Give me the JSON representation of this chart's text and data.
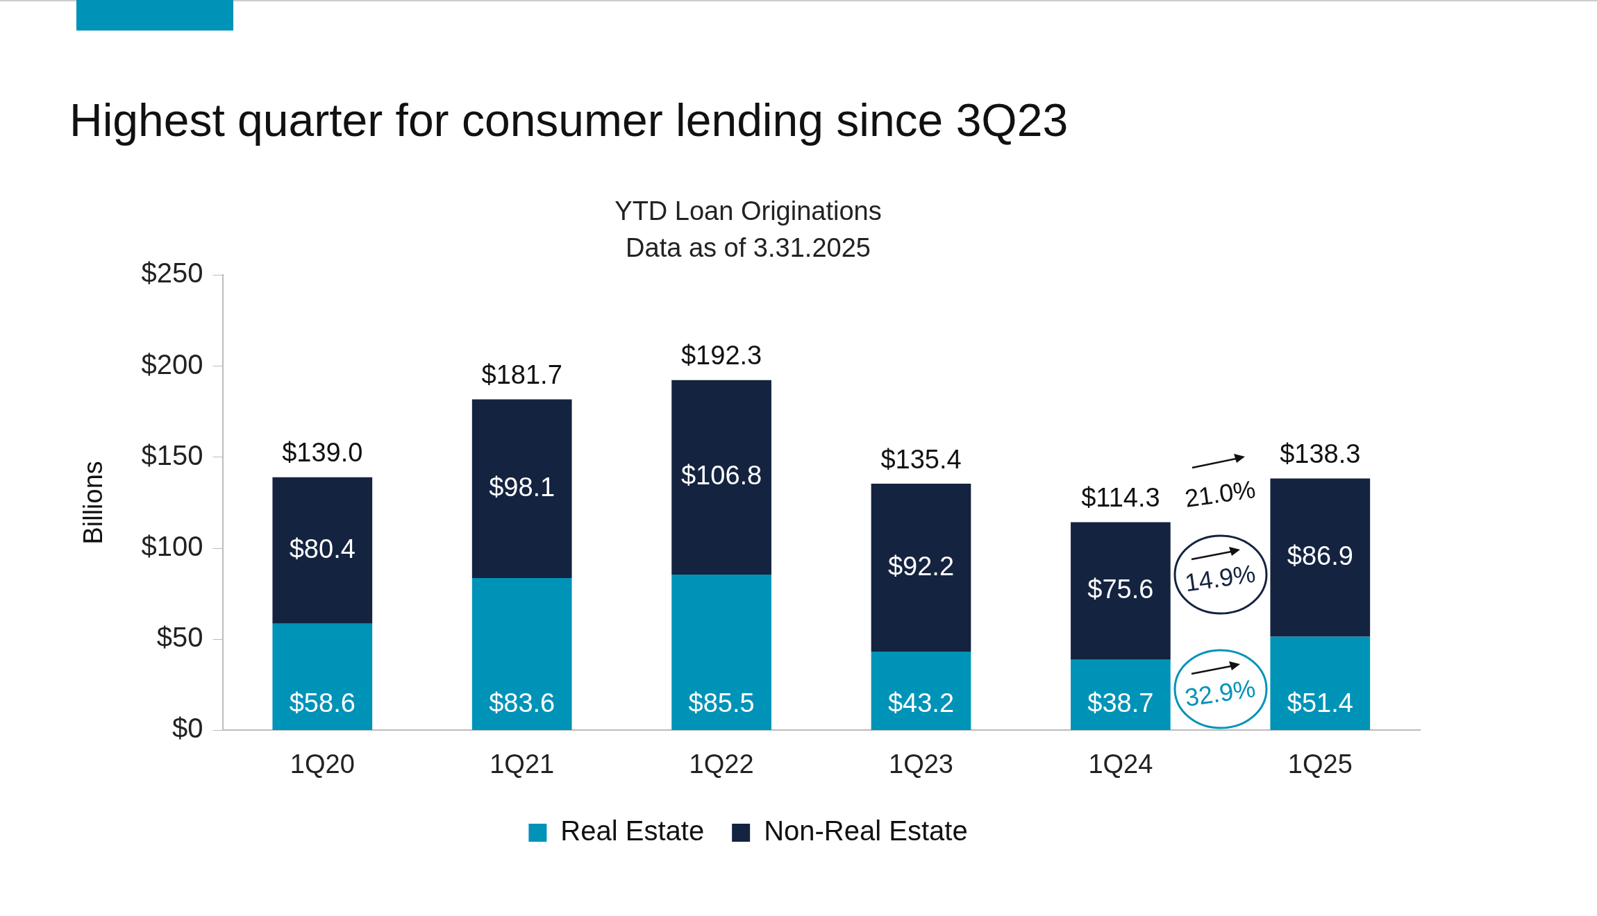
{
  "chart_data": {
    "type": "bar",
    "title": "Highest quarter for consumer lending since 3Q23",
    "subtitle": "YTD Loan Originations\nData as of 3.31.2025",
    "ylabel": "Billions",
    "categories": [
      "1Q20",
      "1Q21",
      "1Q22",
      "1Q23",
      "1Q24",
      "1Q25"
    ],
    "series": [
      {
        "name": "Real Estate",
        "color": "#0093b8",
        "values": [
          58.6,
          83.6,
          85.5,
          43.2,
          38.7,
          51.4
        ],
        "value_labels": [
          "$58.6",
          "$83.6",
          "$85.5",
          "$43.2",
          "$38.7",
          "$51.4"
        ]
      },
      {
        "name": "Non-Real Estate",
        "color": "#14233f",
        "values": [
          80.4,
          98.1,
          106.8,
          92.2,
          75.6,
          86.9
        ],
        "value_labels": [
          "$80.4",
          "$98.1",
          "$106.8",
          "$92.2",
          "$75.6",
          "$86.9"
        ]
      }
    ],
    "stacked": true,
    "totals": [
      "$139.0",
      "$181.7",
      "$192.3",
      "$135.4",
      "$114.3",
      "$138.3"
    ],
    "ylim": [
      0,
      250
    ],
    "yticks": [
      {
        "value": 0,
        "label": "$0"
      },
      {
        "value": 50,
        "label": "$50"
      },
      {
        "value": 100,
        "label": "$100"
      },
      {
        "value": 150,
        "label": "$150"
      },
      {
        "value": 200,
        "label": "$200"
      },
      {
        "value": 250,
        "label": "$250"
      }
    ],
    "grid": false,
    "legend": "bottom",
    "annotations": [
      "21.0%",
      "14.9%",
      "32.9%"
    ]
  }
}
